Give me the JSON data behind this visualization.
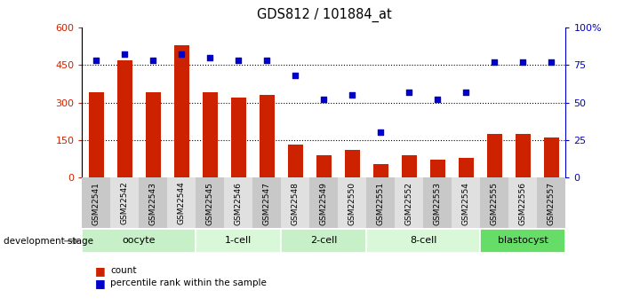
{
  "title": "GDS812 / 101884_at",
  "samples": [
    "GSM22541",
    "GSM22542",
    "GSM22543",
    "GSM22544",
    "GSM22545",
    "GSM22546",
    "GSM22547",
    "GSM22548",
    "GSM22549",
    "GSM22550",
    "GSM22551",
    "GSM22552",
    "GSM22553",
    "GSM22554",
    "GSM22555",
    "GSM22556",
    "GSM22557"
  ],
  "counts": [
    340,
    470,
    340,
    530,
    340,
    320,
    330,
    130,
    90,
    110,
    55,
    90,
    70,
    80,
    175,
    175,
    160
  ],
  "percentiles": [
    78,
    82,
    78,
    82,
    80,
    78,
    78,
    68,
    52,
    55,
    30,
    57,
    52,
    57,
    77,
    77,
    77
  ],
  "groups": [
    {
      "name": "oocyte",
      "start": 0,
      "end": 4,
      "color": "#c8f0c8"
    },
    {
      "name": "1-cell",
      "start": 4,
      "end": 7,
      "color": "#d8f8d8"
    },
    {
      "name": "2-cell",
      "start": 7,
      "end": 10,
      "color": "#c8f0c8"
    },
    {
      "name": "8-cell",
      "start": 10,
      "end": 14,
      "color": "#d8f8d8"
    },
    {
      "name": "blastocyst",
      "start": 14,
      "end": 17,
      "color": "#66dd66"
    }
  ],
  "bar_color": "#cc2200",
  "dot_color": "#0000cc",
  "ylim_left": [
    0,
    600
  ],
  "ylim_right": [
    0,
    100
  ],
  "yticks_left": [
    0,
    150,
    300,
    450,
    600
  ],
  "ytick_labels_left": [
    "0",
    "150",
    "300",
    "450",
    "600"
  ],
  "yticks_right": [
    0,
    25,
    50,
    75,
    100
  ],
  "ytick_labels_right": [
    "0",
    "25",
    "50",
    "75",
    "100%"
  ],
  "grid_values": [
    150,
    300,
    450
  ],
  "background_color": "#ffffff",
  "bar_width": 0.55,
  "legend_red": "count",
  "legend_blue": "percentile rank within the sample",
  "dev_stage_label": "development stage",
  "col_bg_even": "#c8c8c8",
  "col_bg_odd": "#e0e0e0"
}
